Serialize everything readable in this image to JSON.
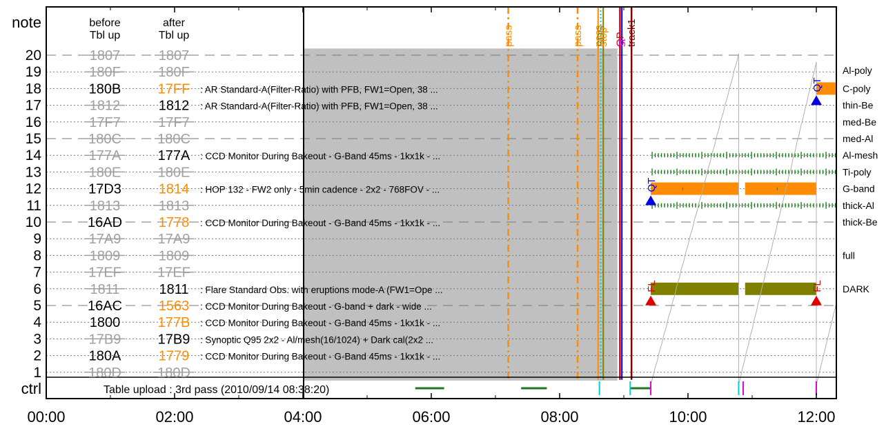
{
  "chart_data": {
    "type": "timeline",
    "x_ticks": [
      "00:00",
      "02:00",
      "04:00",
      "06:00",
      "08:00",
      "10:00",
      "12:00"
    ],
    "x_range_hours": [
      0,
      12.3
    ],
    "y_range": [
      0,
      21
    ],
    "labels": {
      "note": "note",
      "ctrl": "ctrl",
      "before": [
        "before",
        "Tbl up"
      ],
      "after": [
        "after",
        "Tbl up"
      ],
      "ctrl_text": "Table upload : 3rd pass (2010/09/14 08:38:20)"
    },
    "colors": {
      "orange": "#ff8c00",
      "green": "#1a7a1a",
      "olive": "#808000",
      "gray_text": "#a0a0a0",
      "shade": "#c0c0c0",
      "cyan": "#00d0d0",
      "red": "#e00000",
      "blue": "#0000e0",
      "magenta": "#e000e0",
      "dark_red": "#800000"
    },
    "rows": [
      {
        "n": 20,
        "before": "1807",
        "after": "1807",
        "changed": false,
        "desc": "",
        "line": "dash"
      },
      {
        "n": 19,
        "before": "180F",
        "after": "180F",
        "changed": false,
        "desc": "",
        "line": "dot"
      },
      {
        "n": 18,
        "before": "180B",
        "after": "17FF",
        "changed": true,
        "after_color": "orange",
        "desc": ": AR Standard-A(Filter-Ratio) with PFB, FW1=Open, 38 ...",
        "line": "dot"
      },
      {
        "n": 17,
        "before": "1812",
        "after": "1812",
        "changed": true,
        "before_struck": true,
        "after_color": "black",
        "desc": ": AR Standard-A(Filter-Ratio) with PFB, FW1=Open, 38 ...",
        "line": "dot"
      },
      {
        "n": 16,
        "before": "17F7",
        "after": "17F7",
        "changed": false,
        "desc": "",
        "line": "dot"
      },
      {
        "n": 15,
        "before": "180C",
        "after": "180C",
        "changed": false,
        "desc": "",
        "line": "dash"
      },
      {
        "n": 14,
        "before": "177A",
        "after": "177A",
        "changed": true,
        "before_struck": true,
        "after_color": "black",
        "desc": ": CCD Monitor During Bakeout - G-Band 45ms - 1kx1k - ...",
        "line": "dot"
      },
      {
        "n": 13,
        "before": "180E",
        "after": "180E",
        "changed": false,
        "desc": "",
        "line": "dot"
      },
      {
        "n": 12,
        "before": "17D3",
        "after": "1814",
        "changed": true,
        "after_color": "orange",
        "desc": ": HOP 132 - FW2 only - 5min cadence - 2x2 - 768FOV - ...",
        "line": "dot"
      },
      {
        "n": 11,
        "before": "1813",
        "after": "1813",
        "changed": false,
        "desc": "",
        "line": "dot"
      },
      {
        "n": 10,
        "before": "16AD",
        "after": "1778",
        "changed": true,
        "after_color": "orange",
        "desc": ": CCD Monitor During Bakeout - G-Band 45ms - 1kx1k - ...",
        "line": "dash"
      },
      {
        "n": 9,
        "before": "17A9",
        "after": "17A9",
        "changed": false,
        "desc": "",
        "line": "dot"
      },
      {
        "n": 8,
        "before": "1809",
        "after": "1809",
        "changed": false,
        "desc": "",
        "line": "dot"
      },
      {
        "n": 7,
        "before": "17EF",
        "after": "17EF",
        "changed": false,
        "desc": "",
        "line": "dot"
      },
      {
        "n": 6,
        "before": "1811",
        "after": "1811",
        "changed": true,
        "before_struck": true,
        "after_color": "black",
        "desc": ": Flare Standard Obs. with eruptions mode-A (FW1=Ope ...",
        "line": "dot"
      },
      {
        "n": 5,
        "before": "16AC",
        "after": "1563",
        "changed": true,
        "after_color": "orange",
        "desc": ": CCD Monitor During Bakeout - G-band + dark - wide  ...",
        "line": "dash"
      },
      {
        "n": 4,
        "before": "1800",
        "after": "177B",
        "changed": true,
        "after_color": "orange",
        "desc": ": CCD Monitor During Bakeout - G-Band 45ms - 1kx1k - ...",
        "line": "dot"
      },
      {
        "n": 3,
        "before": "17B9",
        "after": "17B9",
        "changed": true,
        "before_struck": true,
        "after_color": "black",
        "desc": ": Synoptic Q95 2x2 - Al/mesh(16/1024) + Dark cal(2x2 ...",
        "line": "dot"
      },
      {
        "n": 2,
        "before": "180A",
        "after": "1779",
        "changed": true,
        "after_color": "orange",
        "desc": ": CCD Monitor During Bakeout - G-Band 45ms - 1kx1k - ...",
        "line": "dot"
      },
      {
        "n": 1,
        "before": "180D",
        "after": "180D",
        "changed": false,
        "desc": "",
        "line": "dot"
      }
    ],
    "right_labels": [
      {
        "y": 19.1,
        "text": "Al-poly"
      },
      {
        "y": 18,
        "text": "C-poly"
      },
      {
        "y": 17,
        "text": "thin-Be"
      },
      {
        "y": 16,
        "text": "med-Be"
      },
      {
        "y": 15,
        "text": "med-Al"
      },
      {
        "y": 14,
        "text": "Al-mesh"
      },
      {
        "y": 13,
        "text": "Ti-poly"
      },
      {
        "y": 12,
        "text": "G-band"
      },
      {
        "y": 11,
        "text": "thick-Al"
      },
      {
        "y": 10,
        "text": "thick-Be"
      },
      {
        "y": 8,
        "text": "full"
      },
      {
        "y": 6,
        "text": "DARK"
      }
    ],
    "shade_range_hours": [
      4.0,
      8.9
    ],
    "vlines": [
      {
        "t": 7.2,
        "color": "orange",
        "style": "dashdot",
        "label": "pass",
        "label_color": "orange"
      },
      {
        "t": 8.28,
        "color": "orange",
        "style": "dashdot",
        "label": "pass",
        "label_color": "orange"
      },
      {
        "t": 8.6,
        "color": "orange",
        "style": "solid",
        "label": "pass",
        "label_color": "orange"
      },
      {
        "t": 8.64,
        "color": "cyan",
        "style": "dot",
        "label": "SDS",
        "label_color": "olive"
      },
      {
        "t": 8.68,
        "color": "olive",
        "style": "solid",
        "label": "stop",
        "label_color": "orange"
      },
      {
        "t": 8.94,
        "color": "red",
        "style": "solid",
        "label": "OP",
        "label_color": "red"
      },
      {
        "t": 8.97,
        "color": "blue",
        "style": "solid",
        "label": "st",
        "label_color": "magenta"
      },
      {
        "t": 9.12,
        "color": "dark_red",
        "style": "solid",
        "label": "track1",
        "label_color": "dark_red"
      }
    ],
    "bars": [
      {
        "row": 12,
        "t0": 9.42,
        "t1": 10.79,
        "color": "orange",
        "type": "solid"
      },
      {
        "row": 12,
        "t0": 10.89,
        "t1": 12.0,
        "color": "orange",
        "type": "solid"
      },
      {
        "row": 6,
        "t0": 9.42,
        "t1": 10.79,
        "color": "olive",
        "type": "solid"
      },
      {
        "row": 6,
        "t0": 10.89,
        "t1": 12.0,
        "color": "olive",
        "type": "solid"
      },
      {
        "row": 18,
        "t0": 12.0,
        "t1": 12.3,
        "color": "orange",
        "type": "solid"
      },
      {
        "row": 14,
        "t0": 9.42,
        "t1": 12.3,
        "color": "green",
        "type": "ticks"
      },
      {
        "row": 13,
        "t0": 9.42,
        "t1": 12.3,
        "color": "green",
        "type": "ticks"
      },
      {
        "row": 11,
        "t0": 9.42,
        "t1": 12.3,
        "color": "green",
        "type": "ticks"
      }
    ],
    "markers": [
      {
        "t": 9.42,
        "y": 11.3,
        "color": "blue",
        "label": "QT"
      },
      {
        "t": 12.0,
        "y": 17.3,
        "color": "blue",
        "label": "QT"
      },
      {
        "t": 9.42,
        "y": 5.3,
        "color": "red",
        "label": "FL"
      },
      {
        "t": 12.0,
        "y": 5.3,
        "color": "red",
        "label": "FL"
      }
    ],
    "sawtooth": [
      {
        "t0": 9.42,
        "t1": 10.79,
        "y0": 0.3,
        "y1": 20.1
      },
      {
        "t0": 10.79,
        "t1": 12.0,
        "y0": 0.3,
        "y1": 19.6
      },
      {
        "t0": 12.0,
        "t1": 12.3,
        "y0": 0.3,
        "y1": 5.0
      }
    ],
    "ctrl_marks": [
      {
        "t0": 5.75,
        "t1": 6.2,
        "color": "green"
      },
      {
        "t0": 7.4,
        "t1": 7.8,
        "color": "green"
      },
      {
        "t0": 8.62,
        "t1": 8.62,
        "color": "cyan"
      },
      {
        "t0": 9.1,
        "t1": 9.42,
        "color": "green"
      },
      {
        "t0": 9.1,
        "t1": 9.1,
        "color": "cyan"
      },
      {
        "t0": 9.42,
        "t1": 9.42,
        "color": "magenta"
      },
      {
        "t0": 10.79,
        "t1": 10.79,
        "color": "cyan"
      },
      {
        "t0": 10.86,
        "t1": 10.86,
        "color": "magenta"
      },
      {
        "t0": 12.0,
        "t1": 12.0,
        "color": "magenta"
      }
    ]
  }
}
